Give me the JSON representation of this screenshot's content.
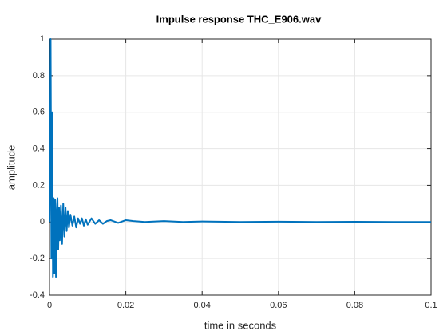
{
  "chart_data": {
    "type": "line",
    "title": "Impulse response THC_E906.wav",
    "x_label": "time in seconds",
    "y_label": "amplitude",
    "x": [
      0,
      0.0002,
      0.0003,
      0.0005,
      0.0007,
      0.0009,
      0.0011,
      0.0013,
      0.0015,
      0.0017,
      0.0019,
      0.0021,
      0.0023,
      0.0025,
      0.0027,
      0.003,
      0.0033,
      0.0036,
      0.0039,
      0.0042,
      0.0045,
      0.0048,
      0.0051,
      0.0055,
      0.006,
      0.0065,
      0.007,
      0.0075,
      0.008,
      0.0085,
      0.009,
      0.0095,
      0.01,
      0.011,
      0.012,
      0.013,
      0.014,
      0.015,
      0.016,
      0.018,
      0.02,
      0.022,
      0.025,
      0.03,
      0.035,
      0.04,
      0.05,
      0.06,
      0.07,
      0.08,
      0.09,
      0.1
    ],
    "series": [
      {
        "name": "impulse response",
        "color": "#0072bd",
        "values": [
          0,
          0.6,
          1.0,
          -0.2,
          0.6,
          -0.3,
          0.13,
          -0.28,
          0.12,
          -0.3,
          0.05,
          0.13,
          -0.15,
          0.08,
          -0.1,
          0.09,
          -0.12,
          0.1,
          -0.08,
          0.08,
          -0.05,
          0.06,
          -0.03,
          0.04,
          -0.02,
          0.03,
          -0.03,
          0.02,
          -0.01,
          0.02,
          -0.02,
          0.015,
          -0.015,
          0.02,
          -0.01,
          0.01,
          -0.01,
          0.005,
          0.01,
          -0.005,
          0.01,
          0.005,
          0,
          0.005,
          0,
          0.003,
          0,
          0.002,
          0,
          0.001,
          0,
          0
        ]
      }
    ],
    "xlim": [
      0,
      0.1
    ],
    "xticks": [
      0,
      0.02,
      0.04,
      0.06,
      0.08,
      0.1
    ],
    "ylim": [
      -0.4,
      1
    ],
    "yticks": [
      -0.4,
      -0.2,
      0,
      0.2,
      0.4,
      0.6,
      0.8,
      1
    ],
    "grid": true
  }
}
